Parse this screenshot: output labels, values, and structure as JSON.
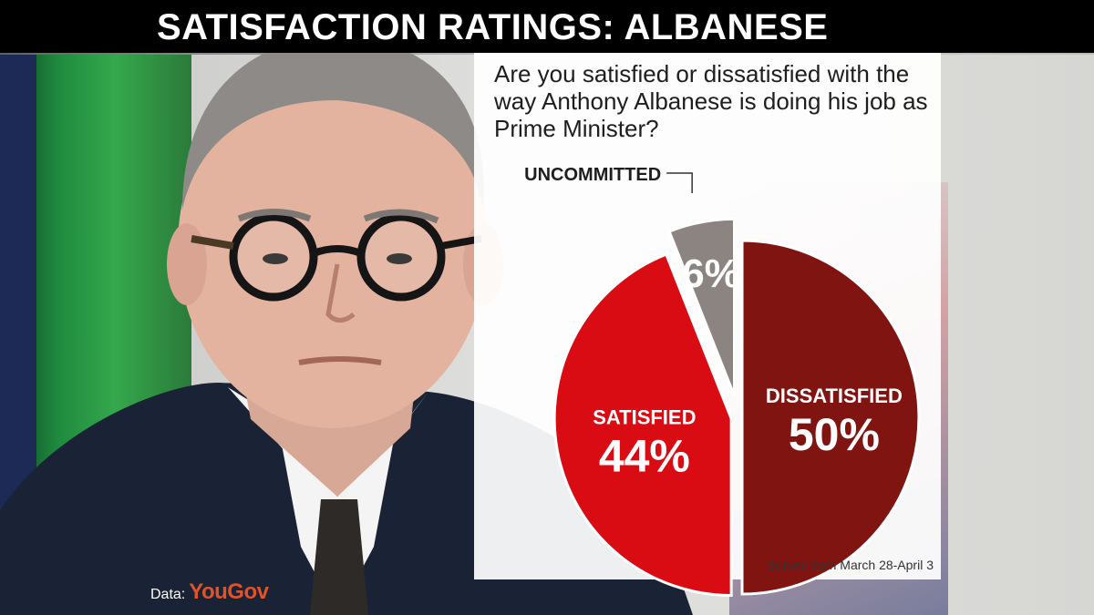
{
  "header": {
    "title": "SATISFACTION RATINGS: ALBANESE"
  },
  "question": "Are you satisfied or dissatisfied with the way Anthony Albanese is doing his job as Prime Minister?",
  "survey_note": "Survey from March 28-April 3",
  "source": {
    "label": "Data:",
    "brand": "YouGov"
  },
  "chart_data": {
    "type": "pie",
    "title": "",
    "slices": [
      {
        "label": "DISSATISFIED",
        "value": 50,
        "display": "50%",
        "color": "#7f1410"
      },
      {
        "label": "SATISFIED",
        "value": 44,
        "display": "44%",
        "color": "#d80c12"
      },
      {
        "label": "UNCOMMITTED",
        "value": 6,
        "display": "6%",
        "color": "#8c8481"
      }
    ],
    "start": "12 o'clock",
    "direction": "clockwise",
    "exploded": true
  },
  "colors": {
    "header_bg": "#000000",
    "header_text": "#ffffff",
    "brand": "#e0532a"
  }
}
